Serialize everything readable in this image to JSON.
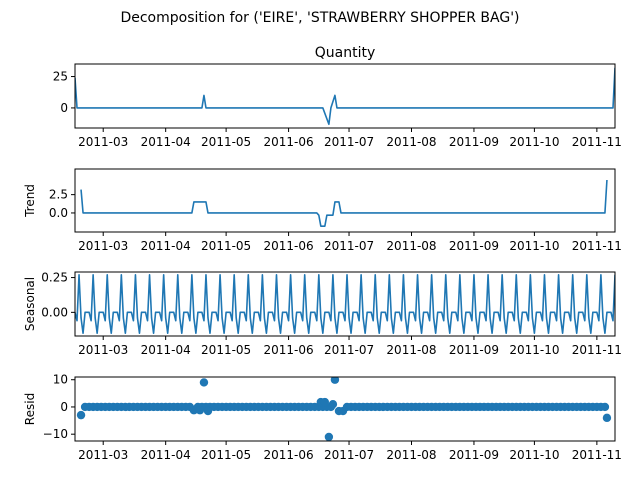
{
  "chart_data": {
    "type": "line",
    "title": "Decomposition for ('EIRE', 'STRAWBERRY SHOPPER BAG')",
    "x_domain": [
      "2011-02-15",
      "2011-11-10"
    ],
    "x_ticks": [
      "2011-03",
      "2011-04",
      "2011-05",
      "2011-06",
      "2011-07",
      "2011-08",
      "2011-09",
      "2011-10",
      "2011-11"
    ],
    "color": "#1f77b4",
    "grid": false,
    "panels": [
      {
        "key": "observed",
        "title": "Quantity",
        "ylabel": "",
        "kind": "line",
        "ylim": [
          -16,
          35
        ],
        "yticks": [
          0,
          25
        ],
        "ytick_labels": [
          "0",
          "25"
        ],
        "points": [
          [
            "2011-02-15",
            24
          ],
          [
            "2011-02-16",
            0
          ],
          [
            "2011-04-19",
            0
          ],
          [
            "2011-04-20",
            10
          ],
          [
            "2011-04-21",
            0
          ],
          [
            "2011-06-18",
            0
          ],
          [
            "2011-06-21",
            -13
          ],
          [
            "2011-06-22",
            0
          ],
          [
            "2011-06-24",
            10
          ],
          [
            "2011-06-25",
            0
          ],
          [
            "2011-11-09",
            0
          ],
          [
            "2011-11-10",
            32
          ]
        ]
      },
      {
        "key": "trend",
        "title": "",
        "ylabel": "Trend",
        "kind": "line",
        "ylim": [
          -2.6,
          6.0
        ],
        "yticks": [
          0.0,
          2.5
        ],
        "ytick_labels": [
          "0.0",
          "2.5"
        ],
        "points": [
          [
            "2011-02-18",
            3.2
          ],
          [
            "2011-02-19",
            0
          ],
          [
            "2011-04-14",
            0
          ],
          [
            "2011-04-15",
            1.5
          ],
          [
            "2011-04-21",
            1.5
          ],
          [
            "2011-04-22",
            0
          ],
          [
            "2011-06-15",
            0
          ],
          [
            "2011-06-16",
            -0.3
          ],
          [
            "2011-06-17",
            -1.8
          ],
          [
            "2011-06-19",
            -1.8
          ],
          [
            "2011-06-20",
            -0.3
          ],
          [
            "2011-06-23",
            -0.3
          ],
          [
            "2011-06-24",
            1.5
          ],
          [
            "2011-06-26",
            1.5
          ],
          [
            "2011-06-27",
            0
          ],
          [
            "2011-11-05",
            0
          ],
          [
            "2011-11-06",
            4.5
          ]
        ]
      },
      {
        "key": "seasonal",
        "title": "",
        "ylabel": "Seasonal",
        "kind": "periodic",
        "ylim": [
          -0.17,
          0.29
        ],
        "yticks": [
          0.0,
          0.25
        ],
        "ytick_labels": [
          "0.00",
          "0.25"
        ],
        "period_days": 7,
        "start": "2011-02-15",
        "end": "2011-11-10",
        "pattern": [
          0.0,
          -0.06,
          0.27,
          -0.04,
          -0.15,
          0.0,
          0.0
        ]
      },
      {
        "key": "resid",
        "title": "",
        "ylabel": "Resid",
        "kind": "scatter",
        "ylim": [
          -12.5,
          11
        ],
        "yticks": [
          -10,
          0,
          10
        ],
        "ytick_labels": [
          "−10",
          "0",
          "10"
        ],
        "baseline": 0,
        "start": "2011-02-18",
        "end": "2011-11-06",
        "step_days": 2,
        "outliers": [
          [
            "2011-02-18",
            -3
          ],
          [
            "2011-04-15",
            -1.2
          ],
          [
            "2011-04-18",
            -1.2
          ],
          [
            "2011-04-20",
            9
          ],
          [
            "2011-04-22",
            -1.5
          ],
          [
            "2011-06-17",
            1.8
          ],
          [
            "2011-06-19",
            1.8
          ],
          [
            "2011-06-21",
            -11
          ],
          [
            "2011-06-23",
            1
          ],
          [
            "2011-06-24",
            10
          ],
          [
            "2011-06-26",
            -1.5
          ],
          [
            "2011-06-28",
            -1.5
          ],
          [
            "2011-11-06",
            -4
          ]
        ]
      }
    ]
  }
}
